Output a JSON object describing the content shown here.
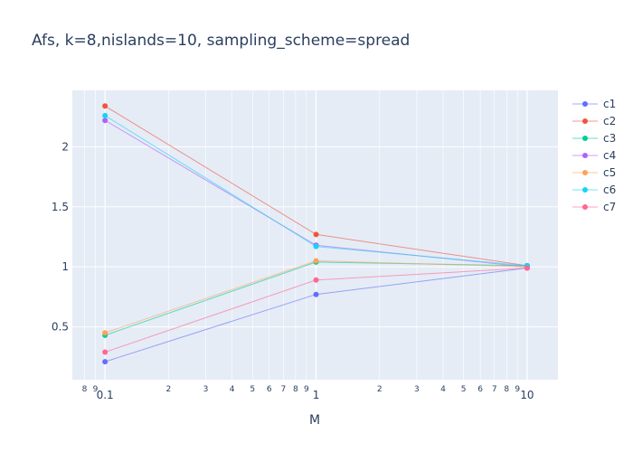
{
  "chart_data": {
    "type": "line",
    "title": "Afs, k=8,nislands=10, sampling_scheme=spread",
    "xlabel": "M",
    "ylabel": "",
    "x_scale": "log",
    "xlim": [
      0.07,
      14
    ],
    "ylim": [
      0.06,
      2.47
    ],
    "grid": true,
    "legend_position": "right",
    "x": [
      0.1,
      1,
      10
    ],
    "x_major_ticks": [
      {
        "value": 0.1,
        "label": "0.1"
      },
      {
        "value": 1,
        "label": "1"
      },
      {
        "value": 10,
        "label": "10"
      }
    ],
    "x_minor_ticks": [
      {
        "value": 0.08,
        "label": "8"
      },
      {
        "value": 0.09,
        "label": "9"
      },
      {
        "value": 0.2,
        "label": "2"
      },
      {
        "value": 0.3,
        "label": "3"
      },
      {
        "value": 0.4,
        "label": "4"
      },
      {
        "value": 0.5,
        "label": "5"
      },
      {
        "value": 0.6,
        "label": "6"
      },
      {
        "value": 0.7,
        "label": "7"
      },
      {
        "value": 0.8,
        "label": "8"
      },
      {
        "value": 0.9,
        "label": "9"
      },
      {
        "value": 2,
        "label": "2"
      },
      {
        "value": 3,
        "label": "3"
      },
      {
        "value": 4,
        "label": "4"
      },
      {
        "value": 5,
        "label": "5"
      },
      {
        "value": 6,
        "label": "6"
      },
      {
        "value": 7,
        "label": "7"
      },
      {
        "value": 8,
        "label": "8"
      },
      {
        "value": 9,
        "label": "9"
      }
    ],
    "y_ticks": [
      {
        "value": 0.5,
        "label": "0.5"
      },
      {
        "value": 1,
        "label": "1"
      },
      {
        "value": 1.5,
        "label": "1.5"
      },
      {
        "value": 2,
        "label": "2"
      }
    ],
    "series": [
      {
        "name": "c1",
        "color": "#636efa",
        "values": [
          0.21,
          0.77,
          0.99
        ]
      },
      {
        "name": "c2",
        "color": "#EF553B",
        "values": [
          2.34,
          1.27,
          1.01
        ]
      },
      {
        "name": "c3",
        "color": "#00cc96",
        "values": [
          0.43,
          1.04,
          1.01
        ]
      },
      {
        "name": "c4",
        "color": "#ab63fa",
        "values": [
          2.22,
          1.18,
          1.0
        ]
      },
      {
        "name": "c5",
        "color": "#FFA15A",
        "values": [
          0.45,
          1.05,
          1.0
        ]
      },
      {
        "name": "c6",
        "color": "#19d3f3",
        "values": [
          2.26,
          1.17,
          1.01
        ]
      },
      {
        "name": "c7",
        "color": "#FF6692",
        "values": [
          0.29,
          0.89,
          0.99
        ]
      }
    ]
  }
}
